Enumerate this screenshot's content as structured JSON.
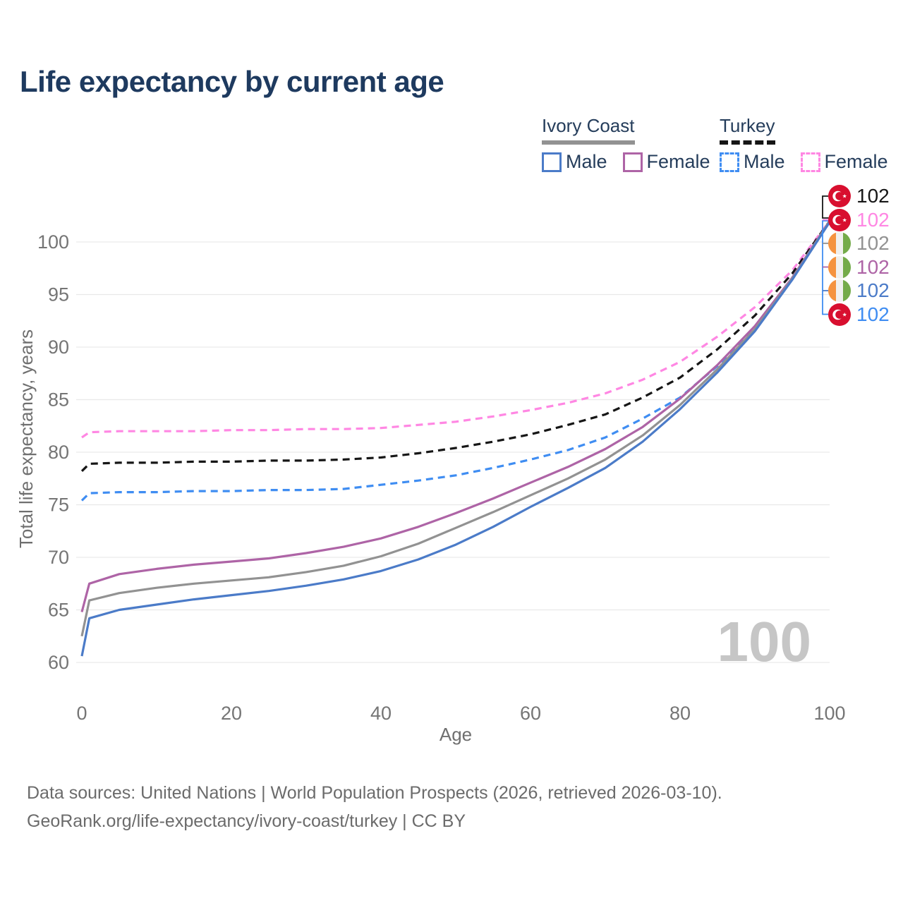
{
  "title": "Life expectancy by current age",
  "watermark": "100",
  "colors": {
    "title": "#1e3a5f",
    "legend_text": "#253d5b",
    "axis_text": "#757575",
    "gridline": "#e9e9e9",
    "watermark": "#c6c6c6",
    "ivory_coast_male": "#4b7bc8",
    "ivory_coast_female": "#ae64a6",
    "ivory_coast_all": "#929292",
    "turkey_male": "#3f8df2",
    "turkey_female": "#ff87e3",
    "turkey_all": "#161616",
    "turkey_flag_red": "#d80f2f",
    "ivory_flag_orange": "#f5933f",
    "ivory_flag_green": "#74ab4a"
  },
  "legend": {
    "groups": [
      {
        "country": "Ivory Coast",
        "line_style": "solid",
        "line_color": "#929292",
        "items": [
          {
            "label": "Male",
            "color": "#4b7bc8",
            "style": "solid"
          },
          {
            "label": "Female",
            "color": "#ae64a6",
            "style": "solid"
          }
        ]
      },
      {
        "country": "Turkey",
        "line_style": "dashed",
        "line_color": "#161616",
        "items": [
          {
            "label": "Male",
            "color": "#3f8df2",
            "style": "dashed"
          },
          {
            "label": "Female",
            "color": "#ff87e3",
            "style": "dashed"
          }
        ]
      }
    ]
  },
  "endpoint_labels": [
    {
      "flag": "turkey",
      "value": "102",
      "color": "#161616"
    },
    {
      "flag": "turkey",
      "value": "102",
      "color": "#ff87e3"
    },
    {
      "flag": "ivory-coast",
      "value": "102",
      "color": "#929292"
    },
    {
      "flag": "ivory-coast",
      "value": "102",
      "color": "#ae64a6"
    },
    {
      "flag": "ivory-coast",
      "value": "102",
      "color": "#4b7bc8"
    },
    {
      "flag": "turkey",
      "value": "102",
      "color": "#3f8df2"
    }
  ],
  "chart_data": {
    "type": "line",
    "title": "Life expectancy by current age",
    "xlabel": "Age",
    "ylabel": "Total life expectancy, years",
    "xlim": [
      0,
      100
    ],
    "ylim": [
      58,
      103.5
    ],
    "x_ticks": [
      0,
      20,
      40,
      60,
      80,
      100
    ],
    "y_ticks": [
      60,
      65,
      70,
      75,
      80,
      85,
      90,
      95,
      100
    ],
    "grid": "horizontal-only",
    "legend_position": "top-right",
    "x": [
      0,
      1,
      5,
      10,
      15,
      20,
      25,
      30,
      35,
      40,
      45,
      50,
      55,
      60,
      65,
      70,
      75,
      80,
      85,
      90,
      95,
      100
    ],
    "series": [
      {
        "name": "Turkey Female",
        "style": "dashed",
        "color": "#ff87e3",
        "values": [
          81.4,
          81.9,
          82.0,
          82.0,
          82.0,
          82.1,
          82.1,
          82.2,
          82.2,
          82.3,
          82.6,
          82.9,
          83.4,
          84.0,
          84.7,
          85.6,
          86.9,
          88.6,
          91.0,
          93.8,
          97.3,
          102.0
        ]
      },
      {
        "name": "Turkey",
        "style": "dashed",
        "color": "#161616",
        "values": [
          78.2,
          78.9,
          79.0,
          79.0,
          79.1,
          79.1,
          79.2,
          79.2,
          79.3,
          79.5,
          79.9,
          80.4,
          81.0,
          81.7,
          82.6,
          83.6,
          85.2,
          87.1,
          89.8,
          93.0,
          97.0,
          102.0
        ]
      },
      {
        "name": "Turkey Male",
        "style": "dashed",
        "color": "#3f8df2",
        "values": [
          75.4,
          76.1,
          76.2,
          76.2,
          76.3,
          76.3,
          76.4,
          76.4,
          76.5,
          76.9,
          77.3,
          77.8,
          78.5,
          79.3,
          80.2,
          81.4,
          83.2,
          85.2,
          88.2,
          91.9,
          96.6,
          101.9
        ]
      },
      {
        "name": "Ivory Coast Female",
        "style": "solid",
        "color": "#ae64a6",
        "values": [
          64.8,
          67.5,
          68.4,
          68.9,
          69.3,
          69.6,
          69.9,
          70.4,
          71.0,
          71.8,
          72.9,
          74.2,
          75.6,
          77.1,
          78.6,
          80.3,
          82.4,
          85.1,
          88.3,
          92.0,
          96.6,
          102.0
        ]
      },
      {
        "name": "Ivory Coast",
        "style": "solid",
        "color": "#929292",
        "values": [
          62.5,
          65.9,
          66.6,
          67.1,
          67.5,
          67.8,
          68.1,
          68.6,
          69.2,
          70.1,
          71.3,
          72.8,
          74.3,
          75.9,
          77.5,
          79.3,
          81.6,
          84.5,
          87.9,
          91.7,
          96.5,
          102.0
        ]
      },
      {
        "name": "Ivory Coast Male",
        "style": "solid",
        "color": "#4b7bc8",
        "values": [
          60.6,
          64.2,
          65.0,
          65.5,
          66.0,
          66.4,
          66.8,
          67.3,
          67.9,
          68.7,
          69.8,
          71.2,
          72.9,
          74.8,
          76.6,
          78.5,
          81.0,
          84.1,
          87.6,
          91.5,
          96.4,
          101.9
        ]
      }
    ]
  },
  "source": {
    "line1": "Data sources: United Nations | World Population Prospects (2026, retrieved 2026-03-10).",
    "line2": "GeoRank.org/life-expectancy/ivory-coast/turkey | CC BY"
  }
}
